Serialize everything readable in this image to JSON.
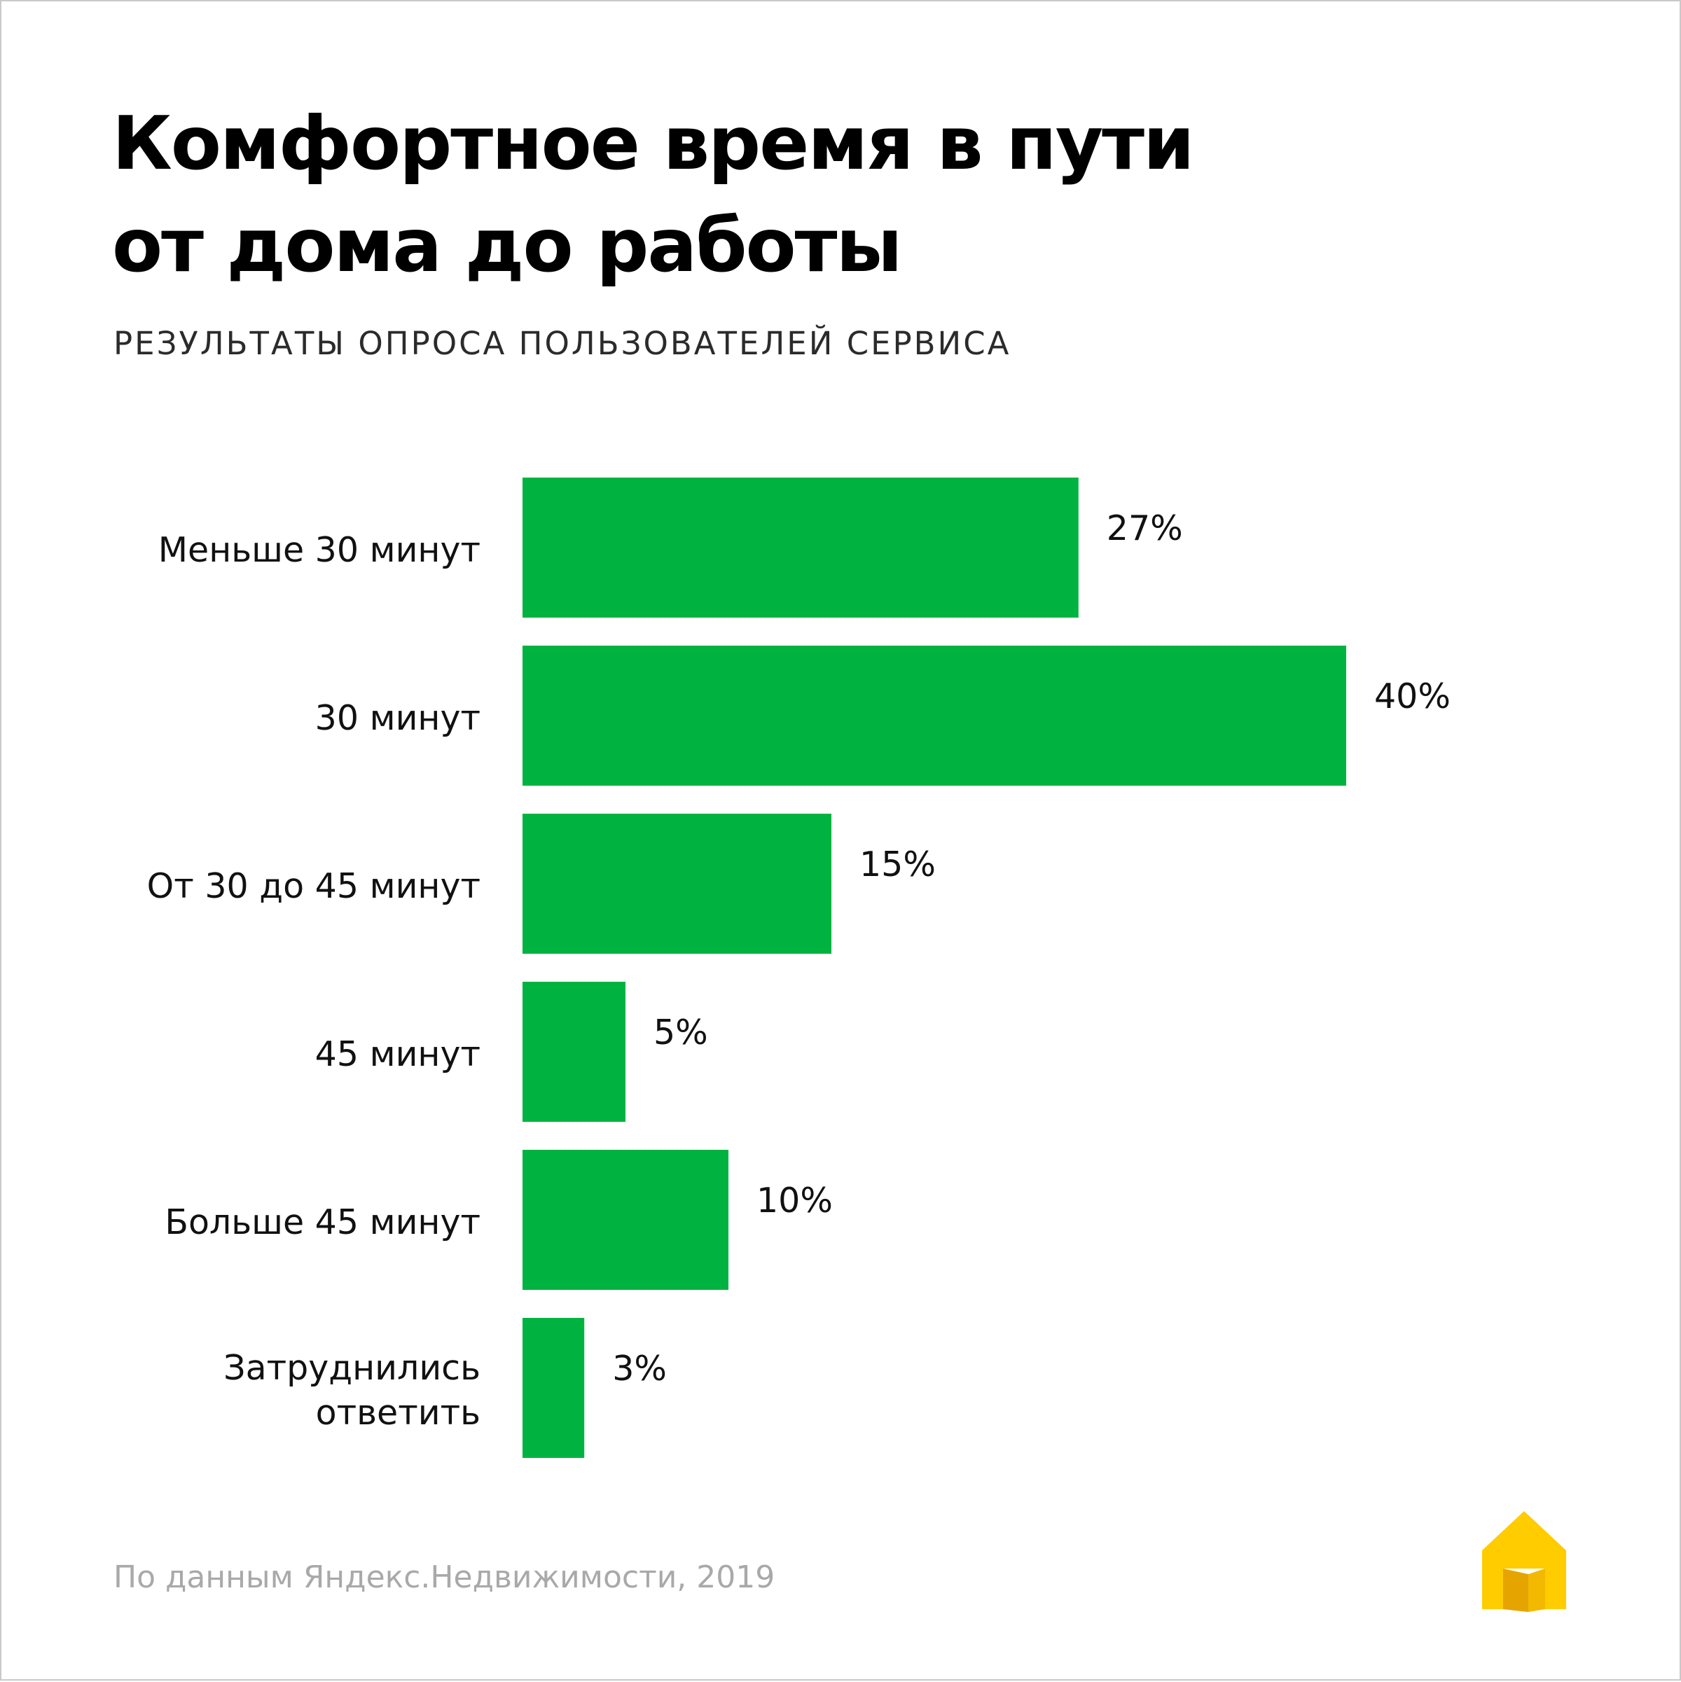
{
  "title_line1": "Комфортное время в пути",
  "title_line2": "от дома до работы",
  "subtitle": "РЕЗУЛЬТАТЫ ОПРОСА ПОЛЬЗОВАТЕЛЕЙ СЕРВИСА",
  "source": "По данным Яндекс.Недвижимости, 2019",
  "logo": {
    "icon": "house-logo-icon",
    "colors": [
      "#ffcc00",
      "#e6a400",
      "#f2b900"
    ]
  },
  "colors": {
    "bar": "#00b341",
    "text": "#111111",
    "source": "#a9a9a9"
  },
  "chart_data": {
    "type": "bar",
    "orientation": "horizontal",
    "categories": [
      "Меньше 30 минут",
      "30 минут",
      "От 30 до 45 минут",
      "45 минут",
      "Больше 45 минут",
      "Затруднились\nответить"
    ],
    "values": [
      27,
      40,
      15,
      5,
      10,
      3
    ],
    "value_labels": [
      "27%",
      "40%",
      "15%",
      "5%",
      "10%",
      "3%"
    ],
    "unit": "%",
    "xlim": [
      0,
      40
    ],
    "grid": false,
    "legend": "none"
  }
}
